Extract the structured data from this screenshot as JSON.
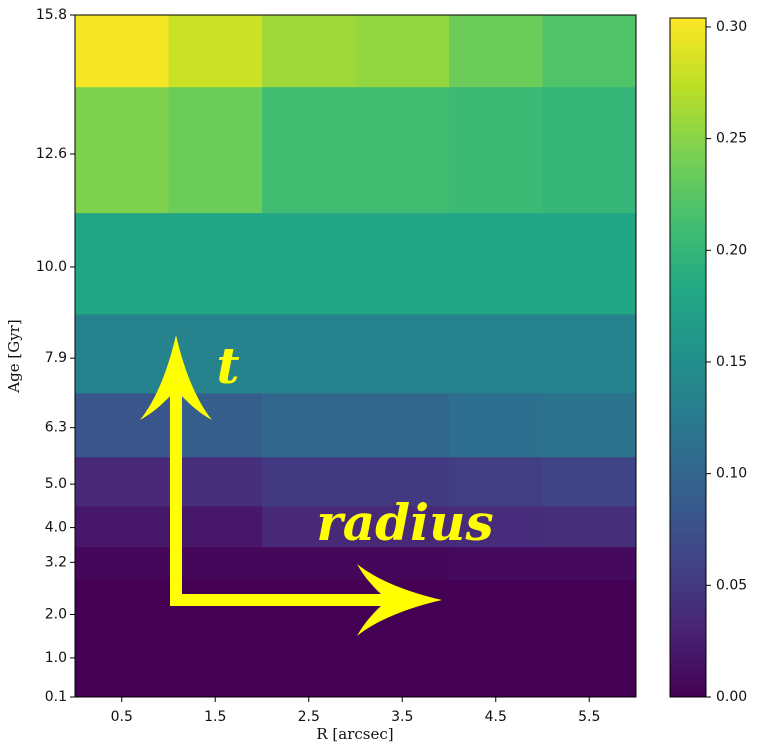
{
  "chart_data": {
    "type": "heatmap",
    "xlabel": "R [arcsec]",
    "ylabel": "Age [Gyr]",
    "x_edges": [
      0,
      1,
      2,
      3,
      4,
      5,
      6
    ],
    "y_edges": [
      0.1,
      2.8,
      3.56,
      4.5,
      5.63,
      7.1,
      8.92,
      11.25,
      14.15,
      15.8
    ],
    "z": [
      [
        0.0,
        0.0,
        0.0,
        0.0,
        0.0,
        0.0
      ],
      [
        0.005,
        0.005,
        0.005,
        0.005,
        0.008,
        0.008
      ],
      [
        0.02,
        0.02,
        0.035,
        0.035,
        0.038,
        0.04
      ],
      [
        0.035,
        0.04,
        0.05,
        0.05,
        0.055,
        0.06
      ],
      [
        0.08,
        0.09,
        0.1,
        0.1,
        0.11,
        0.115
      ],
      [
        0.135,
        0.135,
        0.135,
        0.135,
        0.135,
        0.135
      ],
      [
        0.18,
        0.18,
        0.18,
        0.18,
        0.18,
        0.18
      ],
      [
        0.245,
        0.235,
        0.21,
        0.21,
        0.205,
        0.2
      ],
      [
        0.3,
        0.28,
        0.26,
        0.255,
        0.235,
        0.22
      ]
    ],
    "xlim": [
      0,
      6
    ],
    "xticks": [
      0.5,
      1.5,
      2.5,
      3.5,
      4.5,
      5.5
    ],
    "ylim": [
      0.1,
      15.8
    ],
    "yticks": [
      0.1,
      {
        "value": 1,
        "label": "1.0"
      },
      {
        "value": 2,
        "label": "2.0"
      },
      3.2,
      {
        "value": 4,
        "label": "4.0"
      },
      {
        "value": 5,
        "label": "5.0"
      },
      6.3,
      7.9,
      {
        "value": 10,
        "label": "10.0"
      },
      12.6,
      15.8
    ],
    "colormap": "viridis",
    "clim": [
      0,
      0.304
    ],
    "cticks": [
      {
        "value": 0,
        "label": "0.00"
      },
      {
        "value": 0.05,
        "label": "0.05"
      },
      {
        "value": 0.1,
        "label": "0.10"
      },
      {
        "value": 0.15,
        "label": "0.15"
      },
      {
        "value": 0.2,
        "label": "0.20"
      },
      {
        "value": 0.25,
        "label": "0.25"
      },
      {
        "value": 0.3,
        "label": "0.30"
      }
    ],
    "annotations": [
      "t",
      "radius"
    ]
  }
}
